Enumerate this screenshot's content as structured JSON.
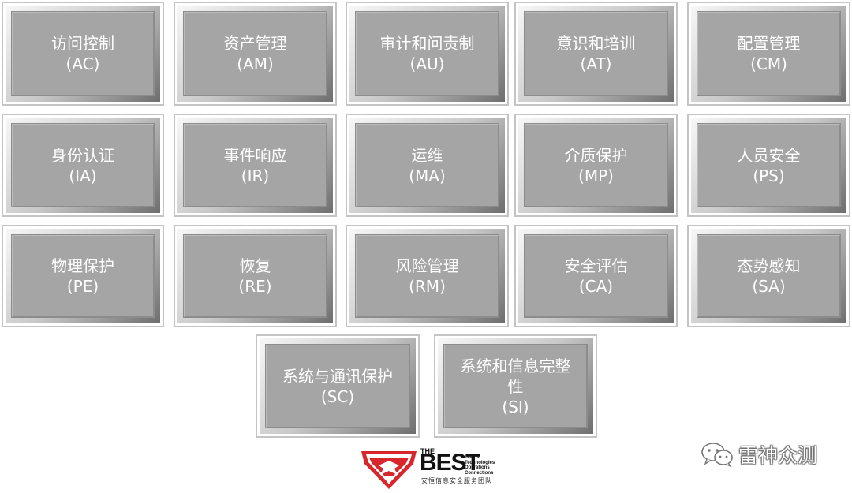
{
  "tiles": [
    {
      "name": "访问控制",
      "abbr": "(AC)"
    },
    {
      "name": "资产管理",
      "abbr": "(AM)"
    },
    {
      "name": "审计和问责制",
      "abbr": "(AU)"
    },
    {
      "name": "意识和培训",
      "abbr": "(AT)"
    },
    {
      "name": "配置管理",
      "abbr": "(CM)"
    },
    {
      "name": "身份认证",
      "abbr": "(IA)"
    },
    {
      "name": "事件响应",
      "abbr": "(IR)"
    },
    {
      "name": "运维",
      "abbr": "(MA)"
    },
    {
      "name": "介质保护",
      "abbr": "(MP)"
    },
    {
      "name": "人员安全",
      "abbr": "(PS)"
    },
    {
      "name": "物理保护",
      "abbr": "(PE)"
    },
    {
      "name": "恢复",
      "abbr": "(RE)"
    },
    {
      "name": "风险管理",
      "abbr": "(RM)"
    },
    {
      "name": "安全评估",
      "abbr": "(CA)"
    },
    {
      "name": "态势感知",
      "abbr": "(SA)"
    },
    {
      "name": "系统与通讯保护",
      "abbr": "(SC)"
    },
    {
      "name": "系统和信息完整性",
      "abbr": "(SI)"
    }
  ],
  "logo": {
    "the": "THE",
    "best": "BEST",
    "tagline": [
      "Teams",
      "Technologies",
      "Operations",
      "Connections"
    ],
    "cn": "安恒信息安全服务团队",
    "colors": {
      "red": "#d7262c",
      "dark": "#111111"
    }
  },
  "watermark": {
    "icon": "wechat-icon",
    "label": "雷神众测"
  },
  "colors": {
    "tile_face": "#a5a5a5",
    "tile_text": "#ffffff",
    "frame": "#c4c4c4"
  }
}
